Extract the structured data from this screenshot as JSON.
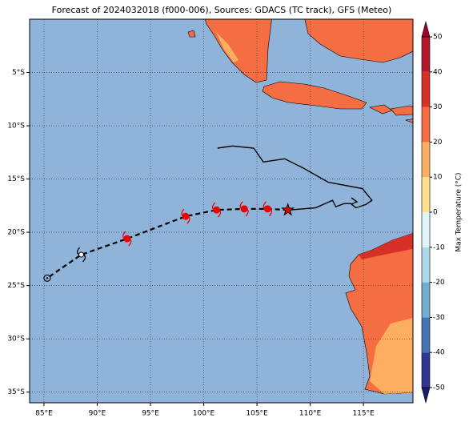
{
  "title": "Forecast of 2024032018 (f000-006), Sources: GDACS (TC track), GFS (Meteo)",
  "map": {
    "xlim": [
      83.65,
      119.65
    ],
    "ylim": [
      -36,
      0
    ],
    "xticks": [
      {
        "value": 85,
        "label": "85°E"
      },
      {
        "value": 90,
        "label": "90°E"
      },
      {
        "value": 95,
        "label": "95°E"
      },
      {
        "value": 100,
        "label": "100°E"
      },
      {
        "value": 105,
        "label": "105°E"
      },
      {
        "value": 110,
        "label": "110°E"
      },
      {
        "value": 115,
        "label": "115°E"
      }
    ],
    "yticks": [
      {
        "value": -5,
        "label": "5°S"
      },
      {
        "value": -10,
        "label": "10°S"
      },
      {
        "value": -15,
        "label": "15°S"
      },
      {
        "value": -20,
        "label": "20°S"
      },
      {
        "value": -25,
        "label": "25°S"
      },
      {
        "value": -30,
        "label": "30°S"
      },
      {
        "value": -35,
        "label": "35°S"
      }
    ],
    "grid": true,
    "ocean_color": "#8fb3d9"
  },
  "forecast_track": {
    "lon": [
      107.9,
      106.0,
      103.8,
      101.2,
      98.3,
      92.8,
      88.5,
      85.3
    ],
    "lat": [
      -17.9,
      -17.8,
      -17.8,
      -17.9,
      -18.5,
      -20.6,
      -22.1,
      -24.3
    ],
    "color": "#000000",
    "marker_color": "#ee0000"
  },
  "observed_track": {
    "lon": [
      101.3,
      102.7,
      104.7,
      105.6,
      107.6,
      109.4,
      111.7,
      114.9,
      115.8,
      115.2,
      114.3,
      113.8,
      113.2,
      112.4,
      112.1,
      110.5,
      108.1
    ],
    "lat": [
      -12.1,
      -11.9,
      -12.1,
      -13.4,
      -13.1,
      -14.0,
      -15.3,
      -15.9,
      -17.0,
      -17.4,
      -17.7,
      -17.3,
      -17.3,
      -17.6,
      -17.0,
      -17.7,
      -17.9
    ],
    "color": "#000000"
  },
  "colorbar": {
    "label": "Max Temperature (°C)",
    "ticks": [
      -50,
      -40,
      -30,
      -20,
      -10,
      0,
      10,
      20,
      30,
      40,
      50
    ],
    "colors": [
      "#313695",
      "#4575b4",
      "#74add1",
      "#abd9e9",
      "#e0f3f8",
      "#fee090",
      "#fdae61",
      "#f46d43",
      "#d73027",
      "#b2182b"
    ],
    "extend_colors": [
      "#1b1b6e",
      "#a50026"
    ]
  }
}
